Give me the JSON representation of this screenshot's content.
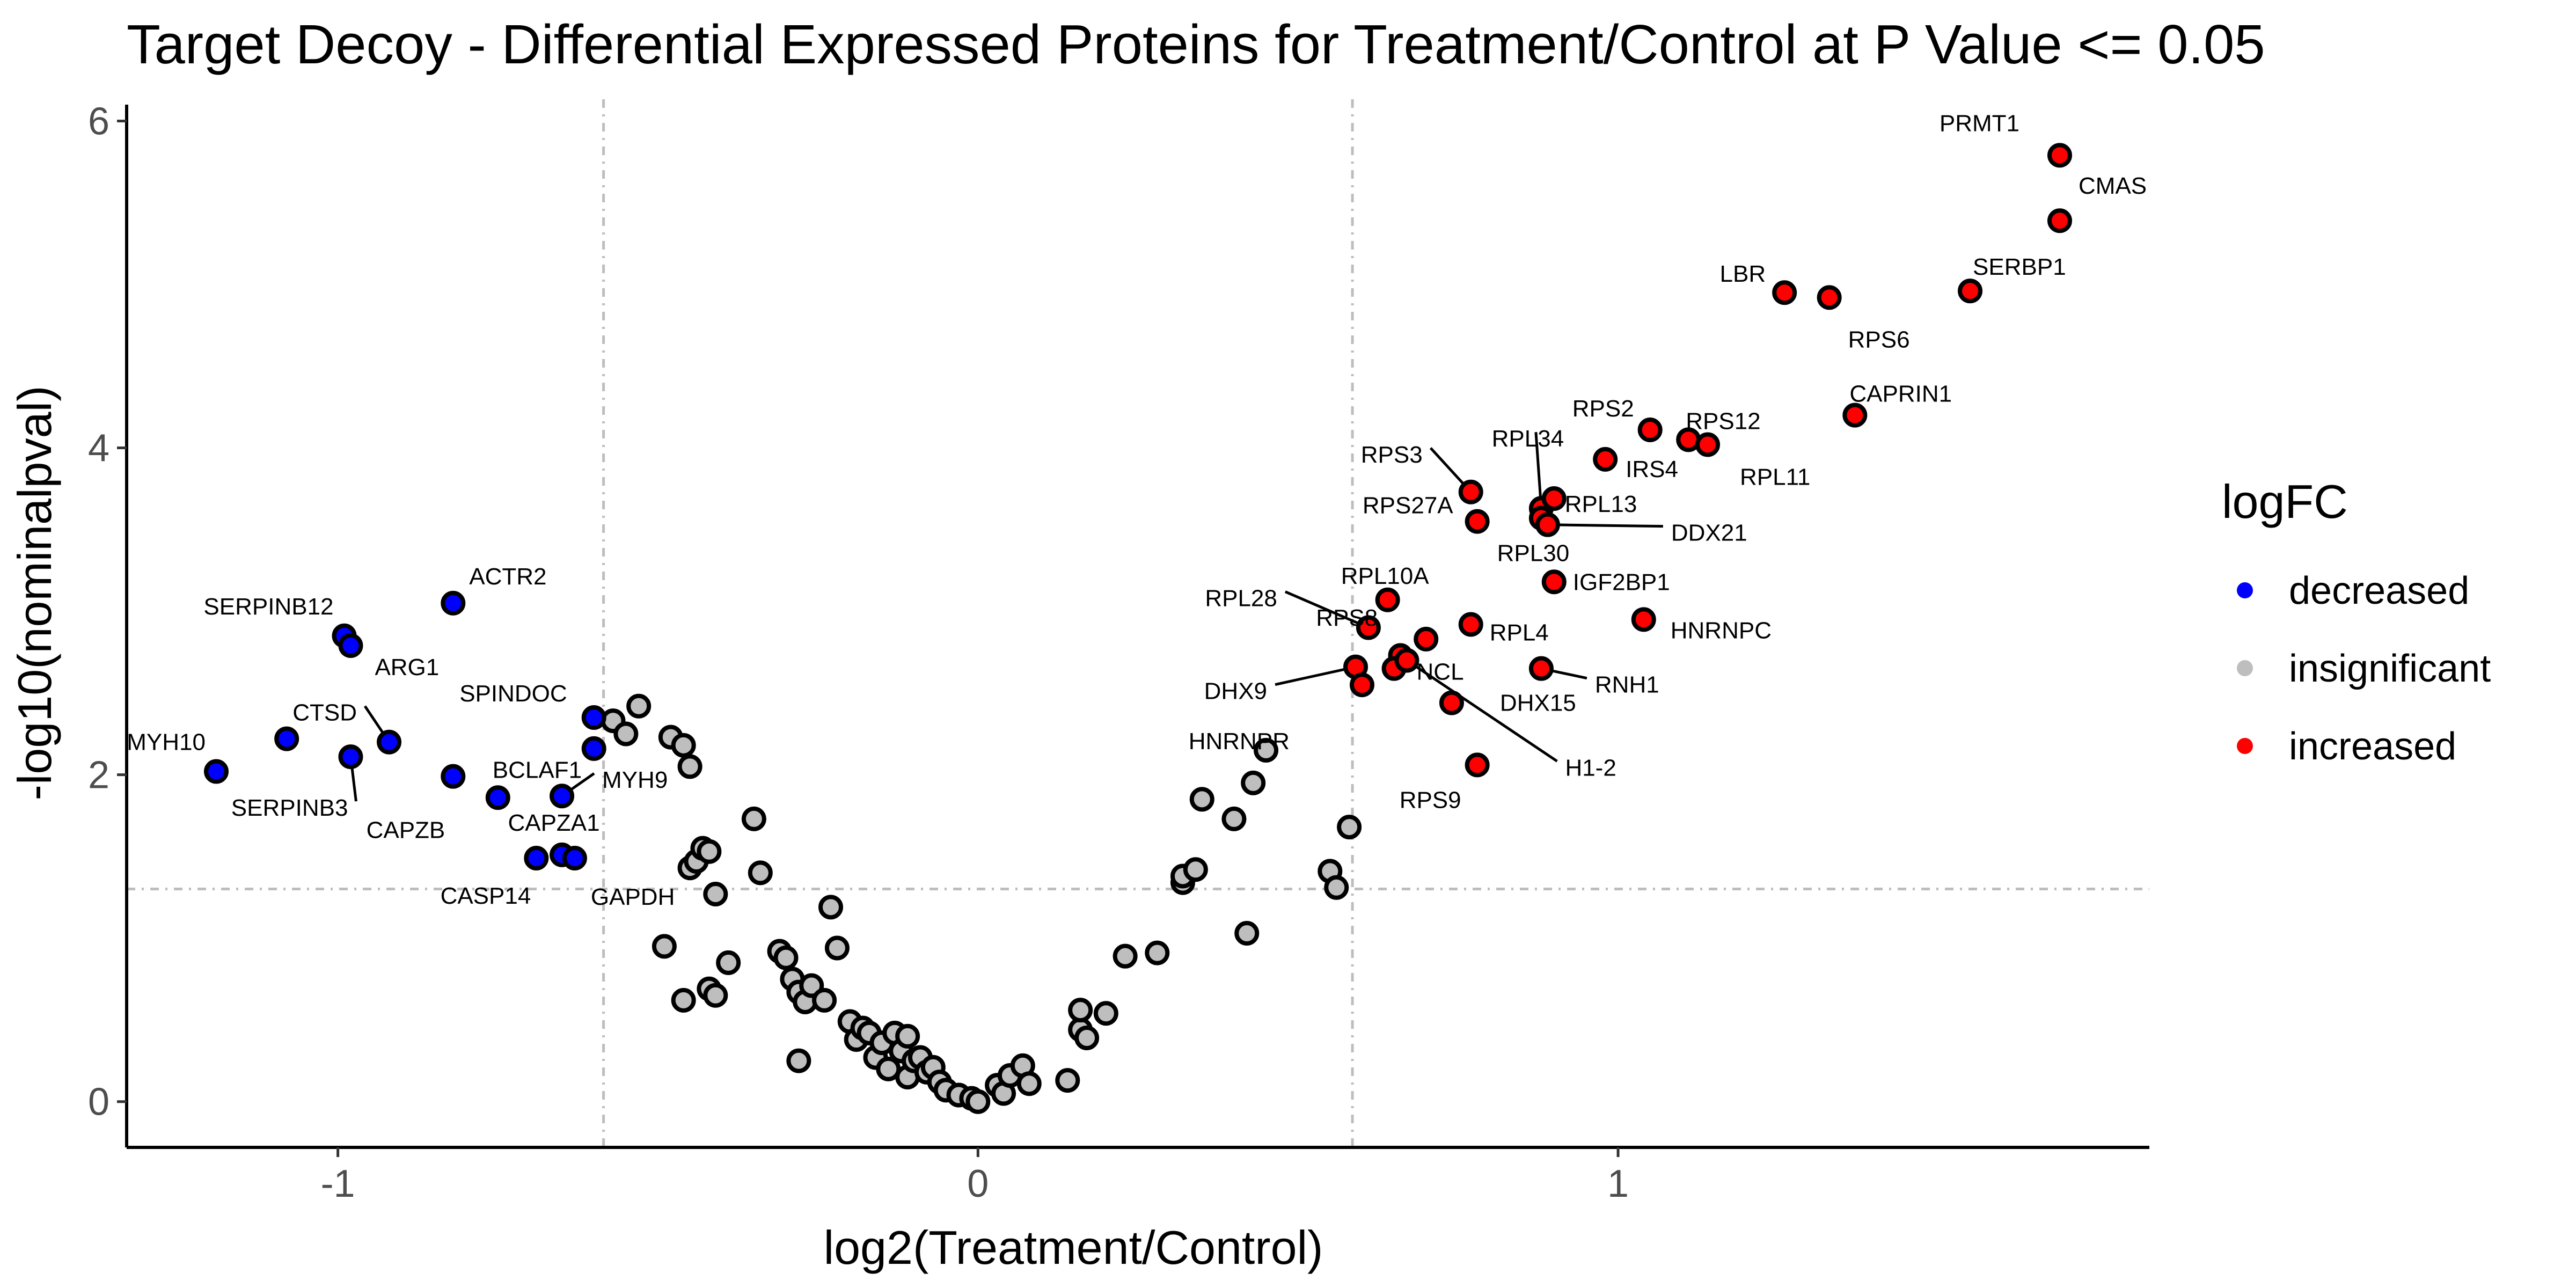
{
  "chart_data": {
    "type": "scatter",
    "title": "Target Decoy - Differential Expressed Proteins for Treatment/Control at P Value <= 0.05",
    "xlabel": "log2(Treatment/Control)",
    "ylabel": "-log10(nominalpval)",
    "xlim": [
      -1.33,
      1.83
    ],
    "ylim": [
      -0.28,
      6.1
    ],
    "x_ticks": [
      -1,
      0,
      1
    ],
    "x_tick_labels": [
      "-1",
      "0",
      "1"
    ],
    "y_ticks": [
      0,
      2,
      4,
      6
    ],
    "y_tick_labels": [
      "0",
      "2",
      "4",
      "6"
    ],
    "threshold_lines": {
      "x": [
        -0.585,
        0.585
      ],
      "y": [
        1.301
      ]
    },
    "grid": false,
    "legend": {
      "title": "logFC",
      "position": "right",
      "entries": [
        {
          "label": "decreased",
          "color": "#0000ff"
        },
        {
          "label": "insignificant",
          "color": "#bebebe"
        },
        {
          "label": "increased",
          "color": "#ff0000"
        }
      ]
    },
    "colors": {
      "decreased": "#0000ff",
      "insignificant": "#bebebe",
      "increased": "#ff0000"
    },
    "series": [
      {
        "name": "decreased",
        "points": [
          {
            "x": -1.19,
            "y": 2.02,
            "label": "MYH10"
          },
          {
            "x": -1.08,
            "y": 2.22,
            "label": ""
          },
          {
            "x": -0.99,
            "y": 2.85,
            "label": "SERPINB12"
          },
          {
            "x": -0.98,
            "y": 2.79,
            "label": "ARG1"
          },
          {
            "x": -0.98,
            "y": 2.11,
            "label": "SERPINB3"
          },
          {
            "x": -0.92,
            "y": 2.2,
            "label": "CTSD"
          },
          {
            "x": -0.82,
            "y": 3.05,
            "label": "ACTR2"
          },
          {
            "x": -0.82,
            "y": 1.99,
            "label": "CAPZB"
          },
          {
            "x": -0.75,
            "y": 1.86,
            "label": "BCLAF1"
          },
          {
            "x": -0.69,
            "y": 1.49,
            "label": "CASP14"
          },
          {
            "x": -0.65,
            "y": 1.51,
            "label": "CAPZA1"
          },
          {
            "x": -0.63,
            "y": 1.49,
            "label": "GAPDH"
          },
          {
            "x": -0.65,
            "y": 1.87,
            "label": "MYH9"
          },
          {
            "x": -0.6,
            "y": 2.35,
            "label": "SPINDOC"
          },
          {
            "x": -0.6,
            "y": 2.16,
            "label": ""
          }
        ]
      },
      {
        "name": "insignificant",
        "points": [
          {
            "x": -0.57,
            "y": 2.33
          },
          {
            "x": -0.55,
            "y": 2.25
          },
          {
            "x": -0.53,
            "y": 2.42
          },
          {
            "x": -0.48,
            "y": 2.23
          },
          {
            "x": -0.46,
            "y": 2.18
          },
          {
            "x": -0.45,
            "y": 2.05
          },
          {
            "x": -0.49,
            "y": 0.95
          },
          {
            "x": -0.46,
            "y": 0.62
          },
          {
            "x": -0.45,
            "y": 1.43
          },
          {
            "x": -0.44,
            "y": 1.47
          },
          {
            "x": -0.43,
            "y": 1.55
          },
          {
            "x": -0.42,
            "y": 1.53
          },
          {
            "x": -0.41,
            "y": 1.27
          },
          {
            "x": -0.42,
            "y": 0.69
          },
          {
            "x": -0.41,
            "y": 0.65
          },
          {
            "x": -0.39,
            "y": 0.85
          },
          {
            "x": -0.35,
            "y": 1.73
          },
          {
            "x": -0.34,
            "y": 1.4
          },
          {
            "x": -0.31,
            "y": 0.92
          },
          {
            "x": -0.3,
            "y": 0.88
          },
          {
            "x": -0.29,
            "y": 0.75
          },
          {
            "x": -0.28,
            "y": 0.25
          },
          {
            "x": -0.28,
            "y": 0.67
          },
          {
            "x": -0.27,
            "y": 0.61
          },
          {
            "x": -0.26,
            "y": 0.71
          },
          {
            "x": -0.24,
            "y": 0.62
          },
          {
            "x": -0.23,
            "y": 1.19
          },
          {
            "x": -0.22,
            "y": 0.94
          },
          {
            "x": -0.2,
            "y": 0.49
          },
          {
            "x": -0.19,
            "y": 0.38
          },
          {
            "x": -0.18,
            "y": 0.45
          },
          {
            "x": -0.17,
            "y": 0.42
          },
          {
            "x": -0.16,
            "y": 0.27
          },
          {
            "x": -0.15,
            "y": 0.36
          },
          {
            "x": -0.14,
            "y": 0.2
          },
          {
            "x": -0.13,
            "y": 0.42
          },
          {
            "x": -0.12,
            "y": 0.31
          },
          {
            "x": -0.11,
            "y": 0.4
          },
          {
            "x": -0.11,
            "y": 0.15
          },
          {
            "x": -0.1,
            "y": 0.25
          },
          {
            "x": -0.09,
            "y": 0.27
          },
          {
            "x": -0.08,
            "y": 0.18
          },
          {
            "x": -0.07,
            "y": 0.21
          },
          {
            "x": -0.06,
            "y": 0.12
          },
          {
            "x": -0.05,
            "y": 0.07
          },
          {
            "x": -0.03,
            "y": 0.04
          },
          {
            "x": -0.01,
            "y": 0.02
          },
          {
            "x": 0.0,
            "y": 0.0
          },
          {
            "x": 0.03,
            "y": 0.1
          },
          {
            "x": 0.04,
            "y": 0.05
          },
          {
            "x": 0.05,
            "y": 0.16
          },
          {
            "x": 0.07,
            "y": 0.22
          },
          {
            "x": 0.08,
            "y": 0.11
          },
          {
            "x": 0.14,
            "y": 0.13
          },
          {
            "x": 0.16,
            "y": 0.44
          },
          {
            "x": 0.17,
            "y": 0.39
          },
          {
            "x": 0.16,
            "y": 0.56
          },
          {
            "x": 0.2,
            "y": 0.54
          },
          {
            "x": 0.23,
            "y": 0.89
          },
          {
            "x": 0.28,
            "y": 0.91
          },
          {
            "x": 0.32,
            "y": 1.34
          },
          {
            "x": 0.32,
            "y": 1.38
          },
          {
            "x": 0.34,
            "y": 1.42
          },
          {
            "x": 0.35,
            "y": 1.85
          },
          {
            "x": 0.4,
            "y": 1.73
          },
          {
            "x": 0.42,
            "y": 1.03
          },
          {
            "x": 0.43,
            "y": 1.95
          },
          {
            "x": 0.45,
            "y": 2.15
          },
          {
            "x": 0.55,
            "y": 1.41
          },
          {
            "x": 0.56,
            "y": 1.31
          },
          {
            "x": 0.58,
            "y": 1.68
          }
        ]
      },
      {
        "name": "increased",
        "points": [
          {
            "x": 1.69,
            "y": 5.79,
            "label": "PRMT1"
          },
          {
            "x": 1.69,
            "y": 5.39,
            "label": "CMAS"
          },
          {
            "x": 1.26,
            "y": 4.95,
            "label": "LBR"
          },
          {
            "x": 1.33,
            "y": 4.92,
            "label": "RPS6"
          },
          {
            "x": 1.55,
            "y": 4.96,
            "label": "SERBP1"
          },
          {
            "x": 1.37,
            "y": 4.2,
            "label": "CAPRIN1"
          },
          {
            "x": 1.05,
            "y": 4.11,
            "label": "RPS2"
          },
          {
            "x": 1.11,
            "y": 4.05,
            "label": "RPS12"
          },
          {
            "x": 1.14,
            "y": 4.02,
            "label": "RPL11"
          },
          {
            "x": 0.98,
            "y": 3.93,
            "label": "IRS4"
          },
          {
            "x": 0.77,
            "y": 3.73,
            "label": "RPS3"
          },
          {
            "x": 0.78,
            "y": 3.55,
            "label": "RPS27A"
          },
          {
            "x": 0.88,
            "y": 3.63,
            "label": "RPL34"
          },
          {
            "x": 0.9,
            "y": 3.69,
            "label": "RPL13"
          },
          {
            "x": 0.88,
            "y": 3.57,
            "label": "RPL30"
          },
          {
            "x": 0.89,
            "y": 3.53,
            "label": "DDX21"
          },
          {
            "x": 0.9,
            "y": 3.18,
            "label": "IGF2BP1"
          },
          {
            "x": 0.64,
            "y": 3.07,
            "label": "RPL10A"
          },
          {
            "x": 0.61,
            "y": 2.9,
            "label": "RPL28"
          },
          {
            "x": 0.7,
            "y": 2.83,
            "label": "RPS8"
          },
          {
            "x": 0.77,
            "y": 2.92,
            "label": "RPL4"
          },
          {
            "x": 1.04,
            "y": 2.95,
            "label": "HNRNPC"
          },
          {
            "x": 0.66,
            "y": 2.73,
            "label": "NCL"
          },
          {
            "x": 0.59,
            "y": 2.66,
            "label": "DHX9"
          },
          {
            "x": 0.6,
            "y": 2.55,
            "label": "HNRNPR"
          },
          {
            "x": 0.65,
            "y": 2.65,
            "label": ""
          },
          {
            "x": 0.88,
            "y": 2.65,
            "label": "RNH1"
          },
          {
            "x": 0.74,
            "y": 2.44,
            "label": "DHX15"
          },
          {
            "x": 0.78,
            "y": 2.06,
            "label": "RPS9"
          },
          {
            "x": 0.67,
            "y": 2.7,
            "label": "H1-2"
          }
        ]
      }
    ]
  }
}
